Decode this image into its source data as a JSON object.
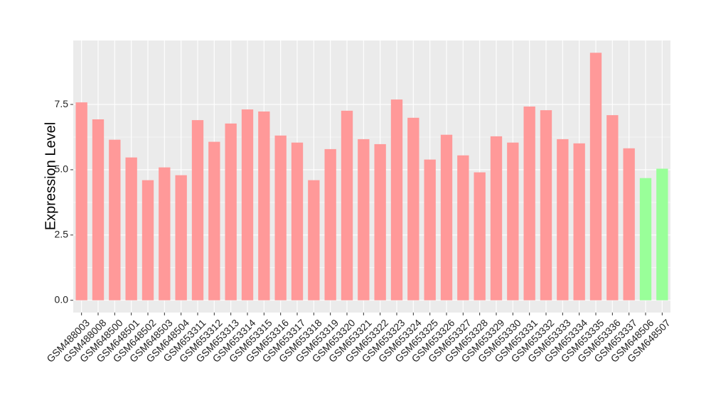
{
  "chart_data": {
    "type": "bar",
    "y_label": "Expression Level",
    "categories": [
      "GSM488003",
      "GSM488008",
      "GSM648500",
      "GSM648501",
      "GSM648502",
      "GSM648503",
      "GSM648504",
      "GSM653311",
      "GSM653312",
      "GSM653313",
      "GSM653314",
      "GSM653315",
      "GSM653316",
      "GSM653317",
      "GSM653318",
      "GSM653319",
      "GSM653320",
      "GSM653321",
      "GSM653322",
      "GSM653323",
      "GSM653324",
      "GSM653325",
      "GSM653326",
      "GSM653327",
      "GSM653328",
      "GSM653329",
      "GSM653330",
      "GSM653331",
      "GSM653332",
      "GSM653333",
      "GSM653334",
      "GSM653335",
      "GSM653336",
      "GSM653337",
      "GSM648506",
      "GSM648507"
    ],
    "values": [
      7.58,
      6.93,
      6.15,
      5.47,
      4.6,
      5.09,
      4.79,
      6.9,
      6.07,
      6.77,
      7.31,
      7.23,
      6.31,
      6.04,
      4.6,
      5.79,
      7.26,
      6.17,
      5.98,
      7.69,
      6.99,
      5.39,
      6.34,
      5.55,
      4.9,
      6.28,
      6.04,
      7.42,
      7.28,
      6.17,
      6.01,
      9.48,
      7.09,
      5.82,
      4.68,
      5.04
    ],
    "colors": [
      "#ff9999",
      "#ff9999",
      "#ff9999",
      "#ff9999",
      "#ff9999",
      "#ff9999",
      "#ff9999",
      "#ff9999",
      "#ff9999",
      "#ff9999",
      "#ff9999",
      "#ff9999",
      "#ff9999",
      "#ff9999",
      "#ff9999",
      "#ff9999",
      "#ff9999",
      "#ff9999",
      "#ff9999",
      "#ff9999",
      "#ff9999",
      "#ff9999",
      "#ff9999",
      "#ff9999",
      "#ff9999",
      "#ff9999",
      "#ff9999",
      "#ff9999",
      "#ff9999",
      "#ff9999",
      "#ff9999",
      "#ff9999",
      "#ff9999",
      "#ff9999",
      "#99ff99",
      "#99ff99"
    ],
    "ylim": [
      -0.47,
      9.95
    ],
    "yticks": [
      {
        "value": 0,
        "label": "0.0"
      },
      {
        "value": 2.5,
        "label": "2.5"
      },
      {
        "value": 5,
        "label": "5.0"
      },
      {
        "value": 7.5,
        "label": "7.5"
      }
    ],
    "grid": true
  }
}
